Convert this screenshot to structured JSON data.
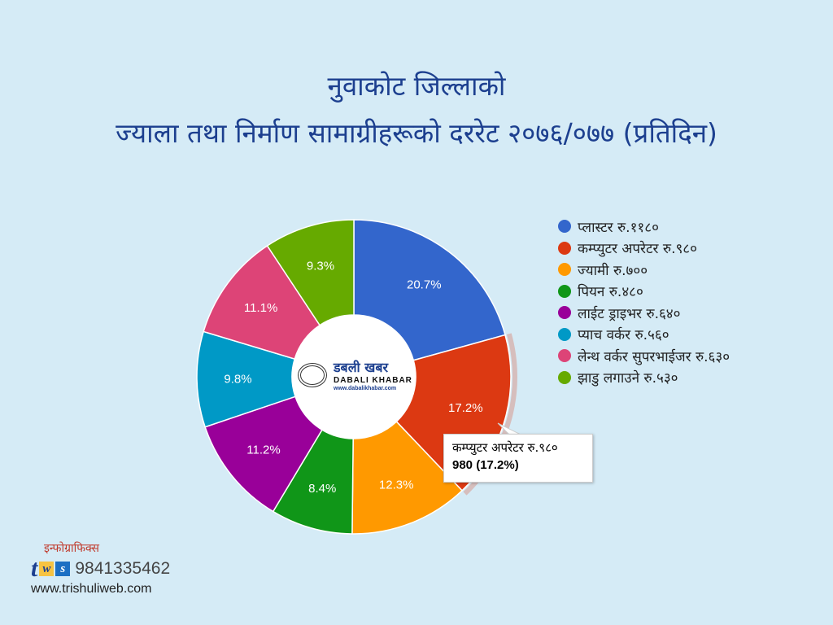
{
  "chart_data": {
    "type": "pie",
    "donut": true,
    "title_line1": "नुवाकोट जिल्लाको",
    "title_line2": "ज्याला तथा निर्माण सामाग्रीहरूको दररेट २०७६/०७७ (प्रतिदिन)",
    "legend_position": "right",
    "slices": [
      {
        "label": "प्लास्टर रु.११८०",
        "value": 1180,
        "percent": "20.7%",
        "color": "#3366cc"
      },
      {
        "label": "कम्प्युटर अपरेटर रु.९८०",
        "value": 980,
        "percent": "17.2%",
        "color": "#dc3912"
      },
      {
        "label": "ज्यामी रु.७००",
        "value": 700,
        "percent": "12.3%",
        "color": "#ff9900"
      },
      {
        "label": "पियन रु.४८०",
        "value": 480,
        "percent": "8.4%",
        "color": "#109618"
      },
      {
        "label": "लाईट ड्राइभर रु.६४०",
        "value": 640,
        "percent": "11.2%",
        "color": "#990099"
      },
      {
        "label": "प्याच वर्कर रु.५६०",
        "value": 560,
        "percent": "9.8%",
        "color": "#0099c6"
      },
      {
        "label": "लेन्थ वर्कर सुपरभाईजर रु.६३०",
        "value": 630,
        "percent": "11.1%",
        "color": "#dd4477"
      },
      {
        "label": "झाडु लगाउने रु.५३०",
        "value": 530,
        "percent": "9.3%",
        "color": "#66aa00"
      }
    ],
    "highlighted_index": 1
  },
  "tooltip": {
    "label": "कम्प्युटर अपरेटर रु.९८०",
    "value": "980 (17.2%)"
  },
  "center_logo": {
    "devanagari": "डबली खबर",
    "english": "DABALI KHABAR",
    "url": "www.dabalikhabar.com"
  },
  "footer": {
    "infographics": "इन्फोग्राफिक्स",
    "logo_letters": [
      "t",
      "w",
      "s"
    ],
    "phone": "9841335462",
    "website": "www.trishuliweb.com"
  }
}
